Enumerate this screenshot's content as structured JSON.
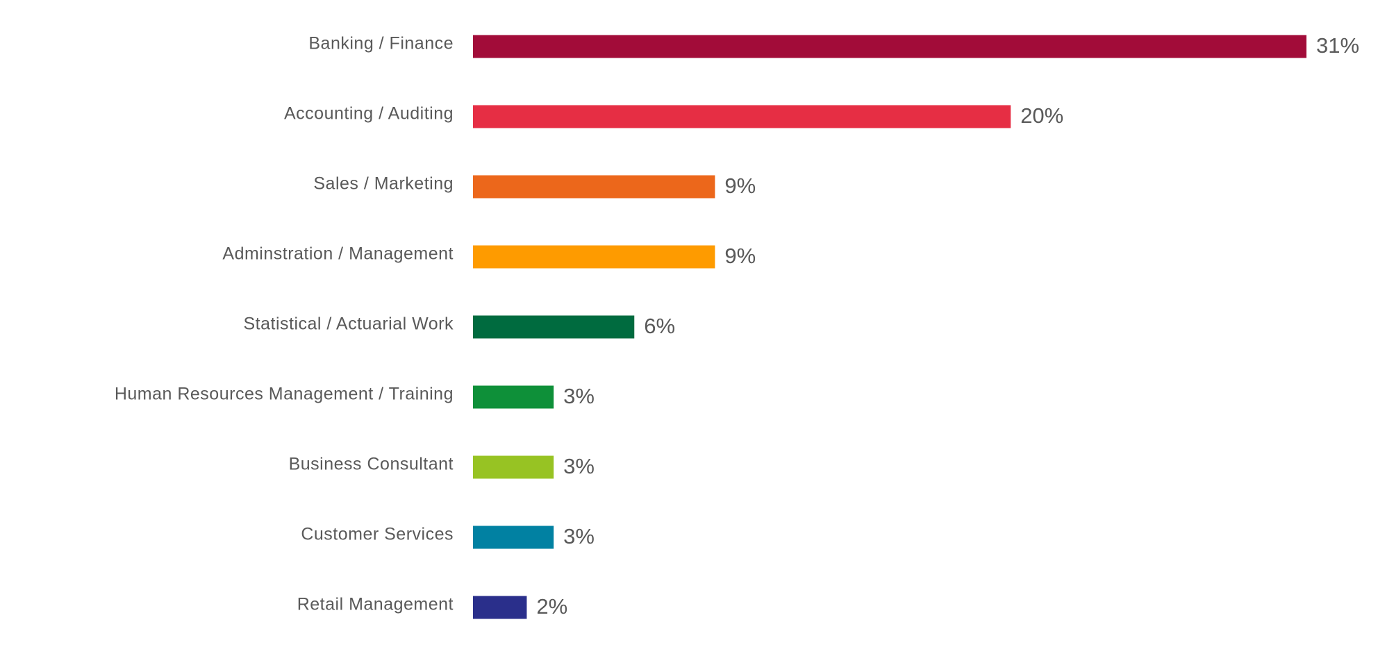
{
  "chart_data": {
    "type": "bar",
    "orientation": "horizontal",
    "categories": [
      "Banking / Finance",
      "Accounting / Auditing",
      "Sales / Marketing",
      "Adminstration / Management",
      "Statistical / Actuarial Work",
      "Human Resources Management / Training",
      "Business Consultant",
      "Customer Services",
      "Retail Management"
    ],
    "values": [
      31,
      20,
      9,
      9,
      6,
      3,
      3,
      3,
      2
    ],
    "value_labels": [
      "31%",
      "20%",
      "9%",
      "9%",
      "6%",
      "3%",
      "3%",
      "3%",
      "2%"
    ],
    "colors": [
      "#a20c39",
      "#e62e44",
      "#ec671b",
      "#fe9b00",
      "#006b3f",
      "#0e9039",
      "#97c323",
      "#0181a2",
      "#2a2f8b"
    ]
  }
}
